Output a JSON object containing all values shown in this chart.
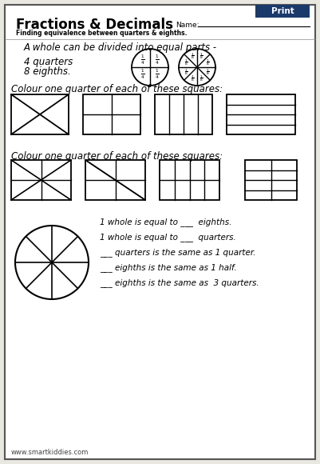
{
  "title": "Fractions & Decimals",
  "subtitle": "Finding equivalence between quarters & eighths.",
  "name_label": "Name:",
  "print_btn_color": "#1a3a6b",
  "print_btn_text": "Print",
  "bg_color": "#e8e8e0",
  "page_bg": "#ffffff",
  "border_color": "#555555",
  "text_intro": "A whole can be divided into equal parts -",
  "text_quarters": "4 quarters",
  "text_eighths": "8 eighths.",
  "label_q1": "Colour one quarter of each of these squares:",
  "label_q2": "Colour one quarter of each of these squares:",
  "footer": "www.smartkiddies.com",
  "bottom_lines": [
    "1 whole is equal to ___  eighths.",
    "1 whole is equal to ___  quarters.",
    "___ quarters is the same as 1 quarter.",
    "___ eighths is the same as 1 half.",
    "___ eighths is the same as  3 quarters."
  ]
}
